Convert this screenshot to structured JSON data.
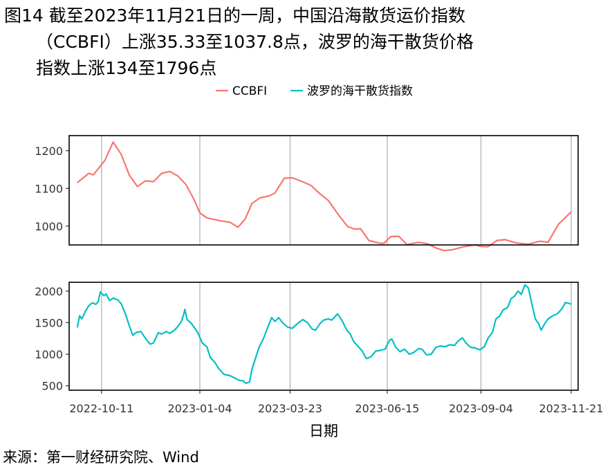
{
  "title": {
    "line1": "图14  截至2023年11月21日的一周，中国沿海散货运价指数",
    "line2": "（CCBFI）上涨35.33至1037.8点，波罗的海干散货价格",
    "line3": "指数上涨134至1796点"
  },
  "source": "来源：第一财经研究院、Wind",
  "chart_data": {
    "type": "line",
    "xlabel": "日期",
    "x_ticks": [
      "2022-10-11",
      "2023-01-04",
      "2023-03-23",
      "2023-06-15",
      "2023-09-04",
      "2023-11-21"
    ],
    "x_range": [
      "2022-09-13",
      "2023-11-27"
    ],
    "legend_position": "top",
    "grid": "vertical lines at x ticks",
    "colors": {
      "ccbfi": "#F8766D",
      "bdi": "#00BFC4"
    },
    "series": [
      {
        "name": "CCBFI",
        "panel": "top",
        "ylim": [
          950,
          1240
        ],
        "y_ticks": [
          1000,
          1100,
          1200
        ],
        "points": [
          [
            "2022-09-20",
            1115
          ],
          [
            "2022-09-30",
            1140
          ],
          [
            "2022-10-04",
            1136
          ],
          [
            "2022-10-14",
            1175
          ],
          [
            "2022-10-21",
            1223
          ],
          [
            "2022-10-28",
            1190
          ],
          [
            "2022-11-04",
            1135
          ],
          [
            "2022-11-11",
            1105
          ],
          [
            "2022-11-18",
            1120
          ],
          [
            "2022-11-25",
            1118
          ],
          [
            "2022-12-02",
            1140
          ],
          [
            "2022-12-09",
            1145
          ],
          [
            "2022-12-16",
            1133
          ],
          [
            "2022-12-23",
            1110
          ],
          [
            "2022-12-30",
            1070
          ],
          [
            "2023-01-04",
            1035
          ],
          [
            "2023-01-10",
            1022
          ],
          [
            "2023-01-20",
            1015
          ],
          [
            "2023-01-30",
            1010
          ],
          [
            "2023-02-06",
            997
          ],
          [
            "2023-02-12",
            1018
          ],
          [
            "2023-02-18",
            1060
          ],
          [
            "2023-02-25",
            1075
          ],
          [
            "2023-03-05",
            1080
          ],
          [
            "2023-03-10",
            1088
          ],
          [
            "2023-03-18",
            1127
          ],
          [
            "2023-03-25",
            1128
          ],
          [
            "2023-04-01",
            1120
          ],
          [
            "2023-04-10",
            1108
          ],
          [
            "2023-04-18",
            1085
          ],
          [
            "2023-04-25",
            1068
          ],
          [
            "2023-05-05",
            1025
          ],
          [
            "2023-05-12",
            998
          ],
          [
            "2023-05-18",
            992
          ],
          [
            "2023-05-23",
            993
          ],
          [
            "2023-05-30",
            962
          ],
          [
            "2023-06-08",
            955
          ],
          [
            "2023-06-12",
            954
          ],
          [
            "2023-06-18",
            972
          ],
          [
            "2023-06-25",
            973
          ],
          [
            "2023-07-02",
            951
          ],
          [
            "2023-07-12",
            957
          ],
          [
            "2023-07-20",
            953
          ],
          [
            "2023-07-27",
            942
          ],
          [
            "2023-08-03",
            935
          ],
          [
            "2023-08-10",
            937
          ],
          [
            "2023-08-20",
            945
          ],
          [
            "2023-08-30",
            950
          ],
          [
            "2023-09-04",
            946
          ],
          [
            "2023-09-10",
            945
          ],
          [
            "2023-09-18",
            962
          ],
          [
            "2023-09-25",
            964
          ],
          [
            "2023-10-05",
            955
          ],
          [
            "2023-10-15",
            952
          ],
          [
            "2023-10-25",
            960
          ],
          [
            "2023-11-01",
            957
          ],
          [
            "2023-11-10",
            1005
          ],
          [
            "2023-11-21",
            1037.8
          ]
        ]
      },
      {
        "name": "波罗的海干散货指数",
        "panel": "bottom",
        "ylim": [
          430,
          2140
        ],
        "y_ticks": [
          500,
          1000,
          1500,
          2000
        ],
        "points": [
          [
            "2022-09-20",
            1423
          ],
          [
            "2022-09-22",
            1610
          ],
          [
            "2022-09-24",
            1560
          ],
          [
            "2022-09-27",
            1680
          ],
          [
            "2022-09-30",
            1770
          ],
          [
            "2022-10-03",
            1815
          ],
          [
            "2022-10-06",
            1790
          ],
          [
            "2022-10-08",
            1830
          ],
          [
            "2022-10-10",
            1986
          ],
          [
            "2022-10-13",
            1930
          ],
          [
            "2022-10-15",
            1955
          ],
          [
            "2022-10-18",
            1850
          ],
          [
            "2022-10-21",
            1890
          ],
          [
            "2022-10-25",
            1860
          ],
          [
            "2022-10-28",
            1800
          ],
          [
            "2022-11-01",
            1620
          ],
          [
            "2022-11-04",
            1450
          ],
          [
            "2022-11-07",
            1300
          ],
          [
            "2022-11-10",
            1345
          ],
          [
            "2022-11-14",
            1360
          ],
          [
            "2022-11-18",
            1250
          ],
          [
            "2022-11-22",
            1160
          ],
          [
            "2022-11-25",
            1180
          ],
          [
            "2022-11-29",
            1340
          ],
          [
            "2022-12-02",
            1320
          ],
          [
            "2022-12-06",
            1360
          ],
          [
            "2022-12-09",
            1330
          ],
          [
            "2022-12-13",
            1380
          ],
          [
            "2022-12-16",
            1440
          ],
          [
            "2022-12-19",
            1520
          ],
          [
            "2022-12-21",
            1630
          ],
          [
            "2022-12-22",
            1710
          ],
          [
            "2022-12-24",
            1550
          ],
          [
            "2022-12-28",
            1480
          ],
          [
            "2023-01-02",
            1350
          ],
          [
            "2023-01-06",
            1180
          ],
          [
            "2023-01-10",
            1120
          ],
          [
            "2023-01-13",
            950
          ],
          [
            "2023-01-17",
            870
          ],
          [
            "2023-01-20",
            780
          ],
          [
            "2023-01-25",
            680
          ],
          [
            "2023-01-30",
            660
          ],
          [
            "2023-02-03",
            625
          ],
          [
            "2023-02-07",
            585
          ],
          [
            "2023-02-10",
            580
          ],
          [
            "2023-02-13",
            540
          ],
          [
            "2023-02-16",
            560
          ],
          [
            "2023-02-18",
            760
          ],
          [
            "2023-02-21",
            930
          ],
          [
            "2023-02-24",
            1100
          ],
          [
            "2023-02-28",
            1250
          ],
          [
            "2023-03-03",
            1390
          ],
          [
            "2023-03-07",
            1580
          ],
          [
            "2023-03-10",
            1520
          ],
          [
            "2023-03-13",
            1580
          ],
          [
            "2023-03-17",
            1490
          ],
          [
            "2023-03-21",
            1430
          ],
          [
            "2023-03-25",
            1410
          ],
          [
            "2023-03-29",
            1480
          ],
          [
            "2023-04-03",
            1550
          ],
          [
            "2023-04-07",
            1500
          ],
          [
            "2023-04-11",
            1400
          ],
          [
            "2023-04-14",
            1380
          ],
          [
            "2023-04-18",
            1490
          ],
          [
            "2023-04-21",
            1540
          ],
          [
            "2023-04-25",
            1560
          ],
          [
            "2023-04-28",
            1540
          ],
          [
            "2023-05-03",
            1640
          ],
          [
            "2023-05-07",
            1530
          ],
          [
            "2023-05-11",
            1380
          ],
          [
            "2023-05-14",
            1320
          ],
          [
            "2023-05-17",
            1200
          ],
          [
            "2023-05-21",
            1120
          ],
          [
            "2023-05-24",
            1060
          ],
          [
            "2023-05-28",
            930
          ],
          [
            "2023-06-01",
            960
          ],
          [
            "2023-06-05",
            1050
          ],
          [
            "2023-06-09",
            1060
          ],
          [
            "2023-06-13",
            1080
          ],
          [
            "2023-06-17",
            1220
          ],
          [
            "2023-06-19",
            1240
          ],
          [
            "2023-06-22",
            1120
          ],
          [
            "2023-06-26",
            1040
          ],
          [
            "2023-06-30",
            1080
          ],
          [
            "2023-07-04",
            1000
          ],
          [
            "2023-07-08",
            1030
          ],
          [
            "2023-07-12",
            1090
          ],
          [
            "2023-07-15",
            1080
          ],
          [
            "2023-07-19",
            990
          ],
          [
            "2023-07-23",
            1000
          ],
          [
            "2023-07-27",
            1110
          ],
          [
            "2023-07-31",
            1130
          ],
          [
            "2023-08-04",
            1120
          ],
          [
            "2023-08-08",
            1150
          ],
          [
            "2023-08-12",
            1140
          ],
          [
            "2023-08-16",
            1220
          ],
          [
            "2023-08-19",
            1260
          ],
          [
            "2023-08-22",
            1180
          ],
          [
            "2023-08-26",
            1110
          ],
          [
            "2023-08-30",
            1100
          ],
          [
            "2023-09-03",
            1070
          ],
          [
            "2023-09-07",
            1120
          ],
          [
            "2023-09-10",
            1250
          ],
          [
            "2023-09-14",
            1350
          ],
          [
            "2023-09-17",
            1560
          ],
          [
            "2023-09-20",
            1600
          ],
          [
            "2023-09-23",
            1700
          ],
          [
            "2023-09-27",
            1740
          ],
          [
            "2023-09-30",
            1880
          ],
          [
            "2023-10-03",
            1920
          ],
          [
            "2023-10-06",
            2000
          ],
          [
            "2023-10-09",
            1950
          ],
          [
            "2023-10-12",
            2100
          ],
          [
            "2023-10-15",
            2050
          ],
          [
            "2023-10-18",
            1800
          ],
          [
            "2023-10-21",
            1560
          ],
          [
            "2023-10-24",
            1480
          ],
          [
            "2023-10-26",
            1380
          ],
          [
            "2023-10-29",
            1480
          ],
          [
            "2023-11-01",
            1560
          ],
          [
            "2023-11-05",
            1610
          ],
          [
            "2023-11-09",
            1640
          ],
          [
            "2023-11-13",
            1720
          ],
          [
            "2023-11-16",
            1820
          ],
          [
            "2023-11-21",
            1796
          ]
        ]
      }
    ]
  }
}
